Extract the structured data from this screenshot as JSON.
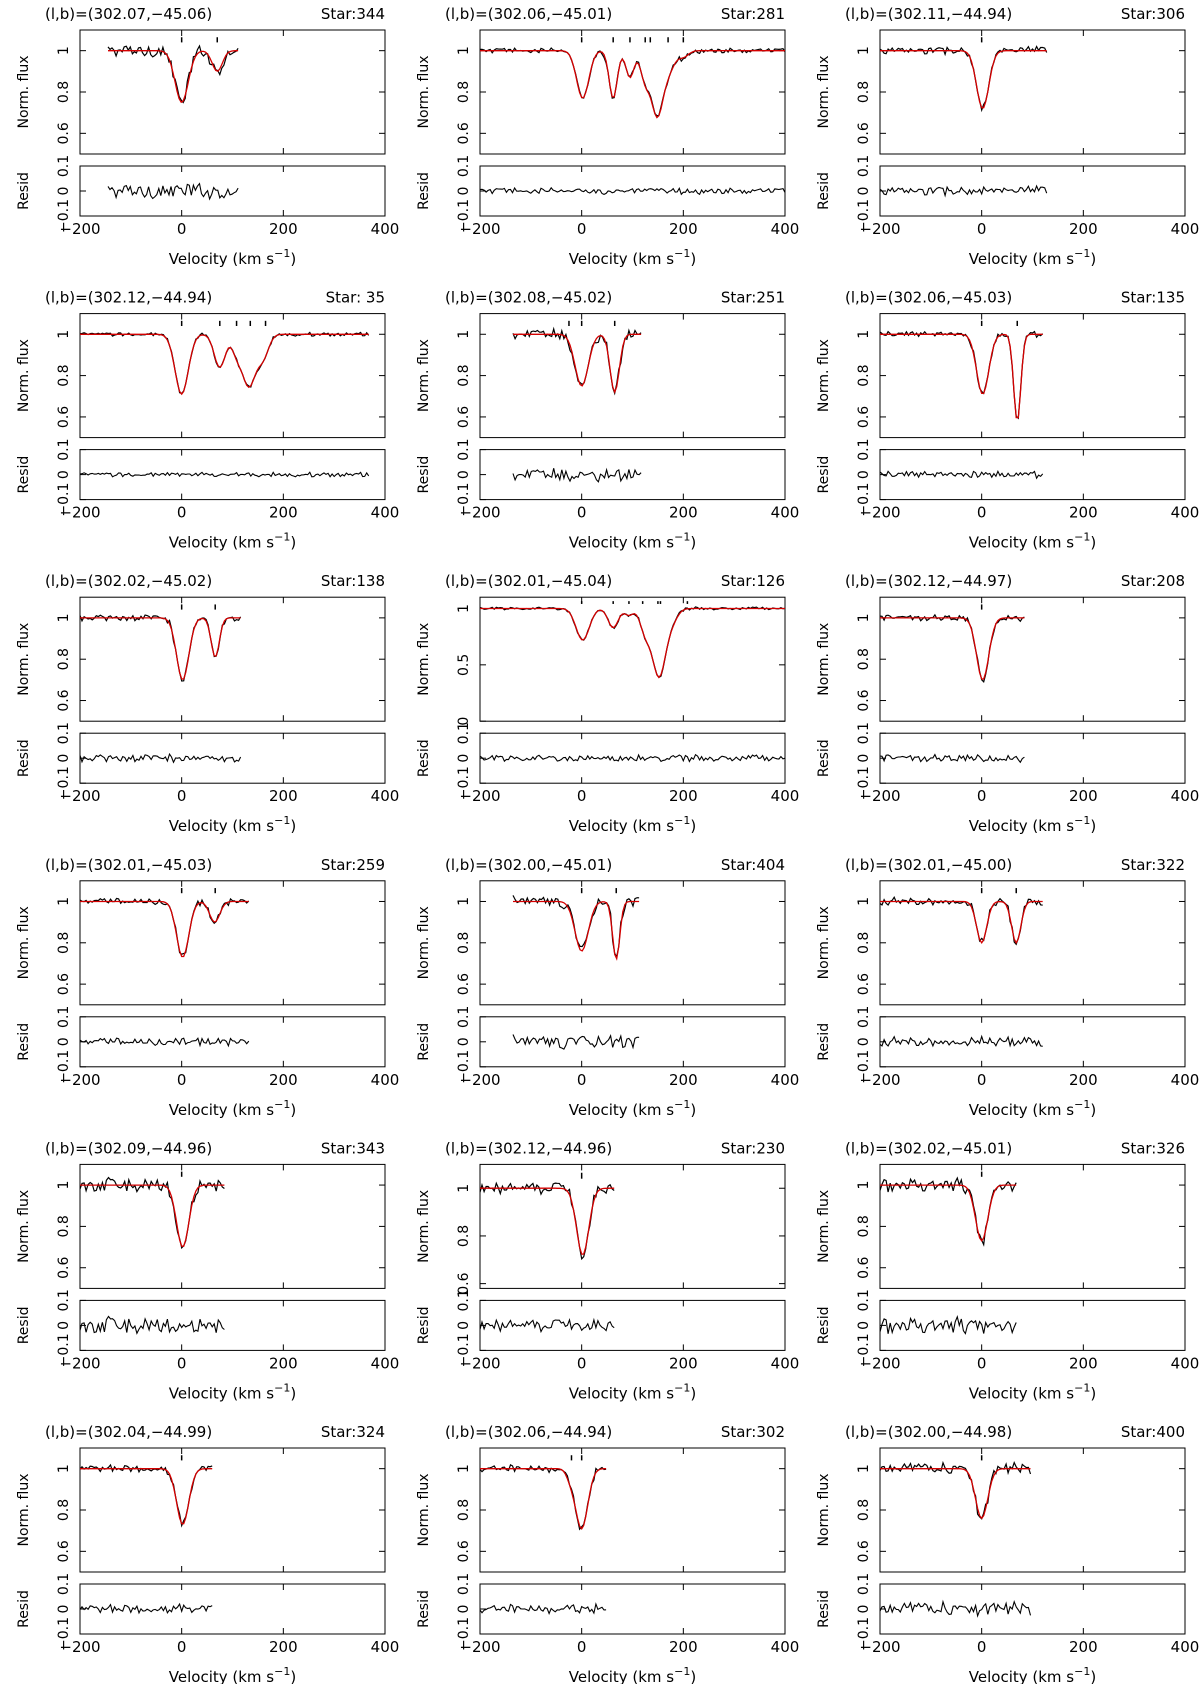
{
  "figure": {
    "axes": {
      "ylabel_flux": "Norm. flux",
      "ylabel_resid": "Resid",
      "xlabel": "Velocity (km s",
      "xlabel_sup": "−1",
      "xlabel_close": ")",
      "xticks": [
        -200,
        0,
        200,
        400
      ],
      "xlim": [
        -200,
        400
      ],
      "flux_yticks_default": [
        "0.6",
        "0.8",
        "1"
      ],
      "flux_yticks_wide": [
        "0.5",
        "1"
      ],
      "flux_yticks_bottom0": [
        "0",
        "0.5",
        "1"
      ],
      "resid_ylim": [
        -0.1,
        0.1
      ],
      "resid_ytick_labels": [
        "−0.1",
        "0",
        "0.1"
      ]
    },
    "colors": {
      "data": "#000000",
      "fit": "#d40000"
    }
  },
  "chart_data": [
    {
      "type": "line",
      "coords": "(l,b)=(302.07,−45.06)",
      "star": "Star:344",
      "x_range": [
        -145,
        113
      ],
      "ylim": [
        0.5,
        1.1
      ],
      "components": [
        {
          "v": 0,
          "depth": 0.25,
          "sigma": 13
        },
        {
          "v": 70,
          "depth": 0.1,
          "sigma": 10
        }
      ],
      "component_marks": [
        0,
        70
      ],
      "noise": 0.025
    },
    {
      "type": "line",
      "coords": "(l,b)=(302.06,−45.01)",
      "star": "Star:281",
      "x_range": [
        -200,
        400
      ],
      "ylim": [
        0.5,
        1.1
      ],
      "components": [
        {
          "v": 2,
          "depth": 0.23,
          "sigma": 12
        },
        {
          "v": 62,
          "depth": 0.23,
          "sigma": 8
        },
        {
          "v": 95,
          "depth": 0.13,
          "sigma": 8
        },
        {
          "v": 125,
          "depth": 0.14,
          "sigma": 9
        },
        {
          "v": 148,
          "depth": 0.3,
          "sigma": 11
        },
        {
          "v": 170,
          "depth": 0.1,
          "sigma": 12
        },
        {
          "v": 200,
          "depth": 0.03,
          "sigma": 10
        }
      ],
      "component_marks": [
        0,
        62,
        95,
        125,
        135,
        170,
        200
      ],
      "noise": 0.01
    },
    {
      "type": "line",
      "coords": "(l,b)=(302.11,−44.94)",
      "star": "Star:306",
      "x_range": [
        -200,
        130
      ],
      "ylim": [
        0.5,
        1.1
      ],
      "components": [
        {
          "v": 2,
          "depth": 0.28,
          "sigma": 12
        }
      ],
      "component_marks": [
        0
      ],
      "noise": 0.015
    },
    {
      "type": "line",
      "coords": "(l,b)=(302.12,−44.94)",
      "star": "Star: 35",
      "x_range": [
        -200,
        370
      ],
      "ylim": [
        0.5,
        1.1
      ],
      "components": [
        {
          "v": 0,
          "depth": 0.29,
          "sigma": 13
        },
        {
          "v": 75,
          "depth": 0.16,
          "sigma": 11
        },
        {
          "v": 108,
          "depth": 0.08,
          "sigma": 9
        },
        {
          "v": 132,
          "depth": 0.25,
          "sigma": 13
        },
        {
          "v": 160,
          "depth": 0.11,
          "sigma": 11
        }
      ],
      "component_marks": [
        0,
        75,
        108,
        135,
        165
      ],
      "noise": 0.007
    },
    {
      "type": "line",
      "coords": "(l,b)=(302.08,−45.02)",
      "star": "Star:251",
      "x_range": [
        -135,
        117
      ],
      "ylim": [
        0.5,
        1.1
      ],
      "components": [
        {
          "v": 0,
          "depth": 0.25,
          "sigma": 13
        },
        {
          "v": 65,
          "depth": 0.28,
          "sigma": 9
        }
      ],
      "component_marks": [
        -25,
        0,
        65
      ],
      "noise": 0.02
    },
    {
      "type": "line",
      "coords": "(l,b)=(302.06,−45.03)",
      "star": "Star:135",
      "x_range": [
        -200,
        120
      ],
      "ylim": [
        0.5,
        1.1
      ],
      "components": [
        {
          "v": 2,
          "depth": 0.29,
          "sigma": 12
        },
        {
          "v": 70,
          "depth": 0.42,
          "sigma": 7
        }
      ],
      "component_marks": [
        0,
        70
      ],
      "noise": 0.01
    },
    {
      "type": "line",
      "coords": "(l,b)=(302.02,−45.02)",
      "star": "Star:138",
      "x_range": [
        -200,
        118
      ],
      "ylim": [
        0.5,
        1.1
      ],
      "components": [
        {
          "v": 2,
          "depth": 0.3,
          "sigma": 12
        },
        {
          "v": 66,
          "depth": 0.19,
          "sigma": 8
        }
      ],
      "component_marks": [
        0,
        66
      ],
      "noise": 0.012
    },
    {
      "type": "line",
      "coords": "(l,b)=(302.01,−45.04)",
      "star": "Star:126",
      "x_range": [
        -200,
        400
      ],
      "ylim": [
        0,
        1.1
      ],
      "wide": true,
      "components": [
        {
          "v": 2,
          "depth": 0.28,
          "sigma": 13
        },
        {
          "v": 62,
          "depth": 0.17,
          "sigma": 10
        },
        {
          "v": 93,
          "depth": 0.06,
          "sigma": 8
        },
        {
          "v": 125,
          "depth": 0.2,
          "sigma": 10
        },
        {
          "v": 152,
          "depth": 0.6,
          "sigma": 13
        },
        {
          "v": 178,
          "depth": 0.1,
          "sigma": 11
        }
      ],
      "component_marks": [
        0,
        62,
        93,
        120,
        150,
        155,
        208
      ],
      "noise": 0.01
    },
    {
      "type": "line",
      "coords": "(l,b)=(302.12,−44.97)",
      "star": "Star:208",
      "x_range": [
        -200,
        85
      ],
      "ylim": [
        0.5,
        1.1
      ],
      "components": [
        {
          "v": 2,
          "depth": 0.3,
          "sigma": 12
        }
      ],
      "component_marks": [
        0
      ],
      "noise": 0.012
    },
    {
      "type": "line",
      "coords": "(l,b)=(302.01,−45.03)",
      "star": "Star:259",
      "x_range": [
        -200,
        135
      ],
      "ylim": [
        0.5,
        1.1
      ],
      "components": [
        {
          "v": 2,
          "depth": 0.27,
          "sigma": 12
        },
        {
          "v": 65,
          "depth": 0.1,
          "sigma": 10
        }
      ],
      "component_marks": [
        0,
        66
      ],
      "noise": 0.012
    },
    {
      "type": "line",
      "coords": "(l,b)=(302.00,−45.01)",
      "star": "Star:404",
      "x_range": [
        -135,
        115
      ],
      "ylim": [
        0.5,
        1.1
      ],
      "components": [
        {
          "v": 0,
          "depth": 0.24,
          "sigma": 13
        },
        {
          "v": 68,
          "depth": 0.28,
          "sigma": 7
        }
      ],
      "component_marks": [
        0,
        68
      ],
      "noise": 0.02
    },
    {
      "type": "line",
      "coords": "(l,b)=(302.01,−45.00)",
      "star": "Star:322",
      "x_range": [
        -200,
        120
      ],
      "ylim": [
        0.5,
        1.1
      ],
      "components": [
        {
          "v": 0,
          "depth": 0.2,
          "sigma": 10
        },
        {
          "v": 68,
          "depth": 0.2,
          "sigma": 9
        }
      ],
      "component_marks": [
        0,
        68
      ],
      "noise": 0.015
    },
    {
      "type": "line",
      "coords": "(l,b)=(302.09,−44.96)",
      "star": "Star:343",
      "x_range": [
        -200,
        85
      ],
      "ylim": [
        0.5,
        1.1
      ],
      "components": [
        {
          "v": 2,
          "depth": 0.3,
          "sigma": 12
        }
      ],
      "component_marks": [
        0
      ],
      "noise": 0.025
    },
    {
      "type": "line",
      "coords": "(l,b)=(302.12,−44.96)",
      "star": "Star:230",
      "x_range": [
        -200,
        65
      ],
      "ylim": [
        0.58,
        1.1
      ],
      "components": [
        {
          "v": 2,
          "depth": 0.28,
          "sigma": 12
        }
      ],
      "component_marks": [
        0
      ],
      "noise": 0.018
    },
    {
      "type": "line",
      "coords": "(l,b)=(302.02,−45.01)",
      "star": "Star:326",
      "x_range": [
        -200,
        68
      ],
      "ylim": [
        0.5,
        1.1
      ],
      "components": [
        {
          "v": 0,
          "depth": 0.27,
          "sigma": 12
        }
      ],
      "component_marks": [
        0
      ],
      "noise": 0.025
    },
    {
      "type": "line",
      "coords": "(l,b)=(302.04,−44.99)",
      "star": "Star:324",
      "x_range": [
        -200,
        62
      ],
      "ylim": [
        0.5,
        1.1
      ],
      "components": [
        {
          "v": 2,
          "depth": 0.27,
          "sigma": 12
        }
      ],
      "component_marks": [
        0
      ],
      "noise": 0.015
    },
    {
      "type": "line",
      "coords": "(l,b)=(302.06,−44.94)",
      "star": "Star:302",
      "x_range": [
        -200,
        48
      ],
      "ylim": [
        0.5,
        1.1
      ],
      "components": [
        {
          "v": 0,
          "depth": 0.29,
          "sigma": 12
        },
        {
          "v": -22,
          "depth": 0.04,
          "sigma": 8
        }
      ],
      "component_marks": [
        -20,
        0
      ],
      "noise": 0.015
    },
    {
      "type": "line",
      "coords": "(l,b)=(302.00,−44.98)",
      "star": "Star:400",
      "x_range": [
        -200,
        98
      ],
      "ylim": [
        0.5,
        1.1
      ],
      "components": [
        {
          "v": 0,
          "depth": 0.24,
          "sigma": 12
        }
      ],
      "component_marks": [
        0
      ],
      "noise": 0.02
    }
  ]
}
